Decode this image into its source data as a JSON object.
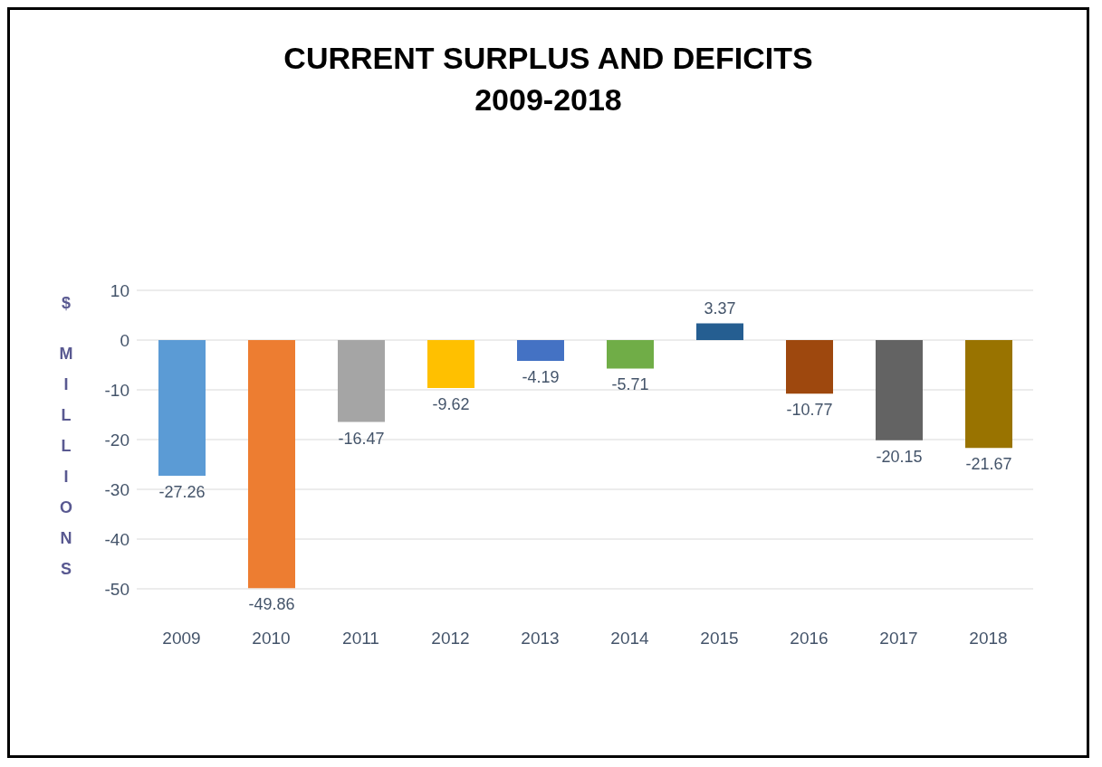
{
  "chart_data": {
    "type": "bar",
    "title": "CURRENT SURPLUS AND DEFICITS",
    "subtitle": "2009-2018",
    "ylabel": "$ MILLIONS",
    "categories": [
      "2009",
      "2010",
      "2011",
      "2012",
      "2013",
      "2014",
      "2015",
      "2016",
      "2017",
      "2018"
    ],
    "values": [
      -27.26,
      -49.86,
      -16.47,
      -9.62,
      -4.19,
      -5.71,
      3.37,
      -10.77,
      -20.15,
      -21.67
    ],
    "colors": [
      "#5b9bd5",
      "#ed7d31",
      "#a5a5a5",
      "#ffc000",
      "#4472c4",
      "#70ad47",
      "#255e91",
      "#9e480e",
      "#636363",
      "#997300"
    ],
    "ylim": [
      -50,
      10
    ],
    "yticks": [
      -50,
      -40,
      -30,
      -20,
      -10,
      0,
      10
    ],
    "grid": "y",
    "data_labels": true
  }
}
